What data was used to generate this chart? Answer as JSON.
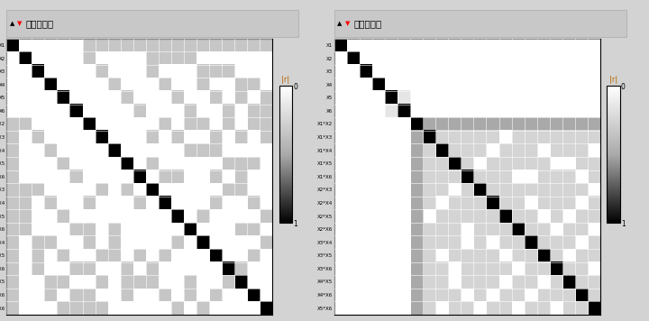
{
  "labels": [
    "X1",
    "X2",
    "X3",
    "X4",
    "X5",
    "X6",
    "X1*X2",
    "X1*X3",
    "X1*X4",
    "X1*X5",
    "X1*X6",
    "X2*X3",
    "X2*X4",
    "X2*X5",
    "X2*X6",
    "X3*X4",
    "X3*X5",
    "X3*X6",
    "X4*X5",
    "X4*X6",
    "X5*X6"
  ],
  "title": "相关性色图",
  "bg_color": "#d3d3d3",
  "panel_bg": "#ebebeb",
  "title_bg": "#c8c8c8",
  "PB_matrix": [
    [
      1,
      0,
      0,
      0,
      0,
      0,
      0.333,
      0.333,
      0.333,
      0.333,
      0.333,
      0.333,
      0.333,
      0.333,
      0.333,
      0.333,
      0.333,
      0.333,
      0.333,
      0.333,
      0.333
    ],
    [
      0,
      1,
      0,
      0,
      0,
      0,
      0.333,
      0,
      0,
      0,
      0,
      0.333,
      0.333,
      0.333,
      0.333,
      0,
      0,
      0,
      0,
      0,
      0
    ],
    [
      0,
      0,
      1,
      0,
      0,
      0,
      0,
      0.333,
      0,
      0,
      0,
      0.333,
      0,
      0,
      0,
      0.333,
      0.333,
      0.333,
      0,
      0,
      0
    ],
    [
      0,
      0,
      0,
      1,
      0,
      0,
      0,
      0,
      0.333,
      0,
      0,
      0,
      0.333,
      0,
      0,
      0.333,
      0,
      0,
      0.333,
      0.333,
      0
    ],
    [
      0,
      0,
      0,
      0,
      1,
      0,
      0,
      0,
      0,
      0.333,
      0,
      0,
      0,
      0.333,
      0,
      0,
      0.333,
      0,
      0.333,
      0,
      0.333
    ],
    [
      0,
      0,
      0,
      0,
      0,
      1,
      0,
      0,
      0,
      0,
      0.333,
      0,
      0,
      0,
      0.333,
      0,
      0,
      0.333,
      0,
      0.333,
      0.333
    ],
    [
      0.333,
      0.333,
      0,
      0,
      0,
      0,
      1,
      0,
      0,
      0,
      0,
      0,
      0.333,
      0,
      0.333,
      0.333,
      0,
      0.333,
      0,
      0.333,
      0.333
    ],
    [
      0.333,
      0,
      0.333,
      0,
      0,
      0,
      0,
      1,
      0,
      0,
      0,
      0.333,
      0,
      0.333,
      0,
      0,
      0.333,
      0,
      0.333,
      0,
      0.333
    ],
    [
      0.333,
      0,
      0,
      0.333,
      0,
      0,
      0,
      0,
      1,
      0,
      0,
      0,
      0,
      0,
      0.333,
      0.333,
      0.333,
      0,
      0,
      0,
      0
    ],
    [
      0.333,
      0,
      0,
      0,
      0.333,
      0,
      0,
      0,
      0,
      1,
      0,
      0.333,
      0,
      0,
      0,
      0,
      0,
      0.333,
      0.333,
      0.333,
      0
    ],
    [
      0.333,
      0,
      0,
      0,
      0,
      0.333,
      0,
      0,
      0,
      0,
      1,
      0,
      0.333,
      0.333,
      0,
      0,
      0.333,
      0,
      0.333,
      0,
      0
    ],
    [
      0.333,
      0.333,
      0.333,
      0,
      0,
      0,
      0,
      0.333,
      0,
      0.333,
      0,
      1,
      0,
      0,
      0,
      0,
      0,
      0.333,
      0.333,
      0,
      0
    ],
    [
      0.333,
      0.333,
      0,
      0.333,
      0,
      0,
      0.333,
      0,
      0,
      0,
      0.333,
      0,
      1,
      0,
      0,
      0,
      0.333,
      0,
      0,
      0.333,
      0
    ],
    [
      0.333,
      0.333,
      0,
      0,
      0.333,
      0,
      0,
      0,
      0,
      0,
      0,
      0,
      0,
      1,
      0,
      0.333,
      0,
      0,
      0,
      0,
      0.333
    ],
    [
      0.333,
      0.333,
      0,
      0,
      0,
      0.333,
      0.333,
      0,
      0.333,
      0,
      0,
      0,
      0,
      0,
      1,
      0,
      0,
      0,
      0.333,
      0.333,
      0
    ],
    [
      0.333,
      0,
      0.333,
      0.333,
      0,
      0,
      0.333,
      0,
      0.333,
      0,
      0,
      0,
      0,
      0.333,
      0,
      1,
      0,
      0,
      0,
      0,
      0.333
    ],
    [
      0.333,
      0,
      0.333,
      0,
      0.333,
      0,
      0,
      0.333,
      0.333,
      0,
      0.333,
      0,
      0.333,
      0,
      0,
      0,
      1,
      0,
      0,
      0.333,
      0
    ],
    [
      0.333,
      0,
      0.333,
      0,
      0,
      0.333,
      0.333,
      0,
      0,
      0.333,
      0,
      0.333,
      0,
      0,
      0,
      0,
      0,
      1,
      0.333,
      0,
      0
    ],
    [
      0.333,
      0,
      0,
      0.333,
      0.333,
      0,
      0,
      0.333,
      0,
      0.333,
      0.333,
      0.333,
      0,
      0,
      0.333,
      0,
      0,
      0.333,
      1,
      0,
      0
    ],
    [
      0.333,
      0,
      0,
      0.333,
      0,
      0.333,
      0.333,
      0,
      0,
      0.333,
      0,
      0,
      0.333,
      0,
      0.333,
      0,
      0.333,
      0,
      0,
      1,
      0
    ],
    [
      0.333,
      0,
      0,
      0,
      0.333,
      0.333,
      0.333,
      0.333,
      0,
      0,
      0,
      0,
      0,
      0.333,
      0,
      0.333,
      0,
      0,
      0,
      0,
      1
    ]
  ],
  "DS_matrix": [
    [
      1,
      0,
      0,
      0,
      0,
      0,
      0,
      0,
      0,
      0,
      0,
      0,
      0,
      0,
      0,
      0,
      0,
      0,
      0,
      0,
      0
    ],
    [
      0,
      1,
      0,
      0,
      0,
      0,
      0,
      0,
      0,
      0,
      0,
      0,
      0,
      0,
      0,
      0,
      0,
      0,
      0,
      0,
      0
    ],
    [
      0,
      0,
      1,
      0,
      0,
      0,
      0,
      0,
      0,
      0,
      0,
      0,
      0,
      0,
      0,
      0,
      0,
      0,
      0,
      0,
      0
    ],
    [
      0,
      0,
      0,
      1,
      0,
      0,
      0,
      0,
      0,
      0,
      0,
      0,
      0,
      0,
      0,
      0,
      0,
      0,
      0,
      0,
      0
    ],
    [
      0,
      0,
      0,
      0,
      1,
      0.15,
      0,
      0,
      0,
      0,
      0,
      0,
      0,
      0,
      0,
      0,
      0,
      0,
      0,
      0,
      0
    ],
    [
      0,
      0,
      0,
      0,
      0.15,
      1,
      0,
      0,
      0,
      0,
      0,
      0,
      0,
      0,
      0,
      0,
      0,
      0,
      0,
      0,
      0
    ],
    [
      0,
      0,
      0,
      0,
      0,
      0,
      1,
      0.5,
      0.5,
      0.5,
      0.5,
      0.5,
      0.5,
      0.5,
      0.5,
      0.5,
      0.5,
      0.5,
      0.5,
      0.5,
      0.5
    ],
    [
      0,
      0,
      0,
      0,
      0,
      0,
      0.5,
      1,
      0.25,
      0.25,
      0.25,
      0.25,
      0.25,
      0,
      0.25,
      0.25,
      0.25,
      0.25,
      0.25,
      0.25,
      0.25
    ],
    [
      0,
      0,
      0,
      0,
      0,
      0,
      0.5,
      0.25,
      1,
      0.25,
      0.25,
      0.25,
      0,
      0.25,
      0.25,
      0.25,
      0,
      0.25,
      0.25,
      0.25,
      0
    ],
    [
      0,
      0,
      0,
      0,
      0,
      0,
      0.5,
      0.25,
      0.25,
      1,
      0.25,
      0,
      0.25,
      0.25,
      0.25,
      0.25,
      0.25,
      0,
      0,
      0.25,
      0.25
    ],
    [
      0,
      0,
      0,
      0,
      0,
      0,
      0.5,
      0.25,
      0.25,
      0.25,
      1,
      0.25,
      0.25,
      0.25,
      0,
      0,
      0.25,
      0.25,
      0.25,
      0,
      0.25
    ],
    [
      0,
      0,
      0,
      0,
      0,
      0,
      0.5,
      0.25,
      0.25,
      0,
      0.25,
      1,
      0.25,
      0.25,
      0.25,
      0.25,
      0.25,
      0.25,
      0.25,
      0.25,
      0
    ],
    [
      0,
      0,
      0,
      0,
      0,
      0,
      0.5,
      0.25,
      0,
      0.25,
      0.25,
      0.25,
      1,
      0.25,
      0.25,
      0,
      0.25,
      0.25,
      0.25,
      0,
      0.25
    ],
    [
      0,
      0,
      0,
      0,
      0,
      0,
      0.5,
      0,
      0.25,
      0.25,
      0.25,
      0.25,
      0.25,
      1,
      0.25,
      0.25,
      0,
      0.25,
      0,
      0.25,
      0.25
    ],
    [
      0,
      0,
      0,
      0,
      0,
      0,
      0.5,
      0.25,
      0.25,
      0.25,
      0,
      0.25,
      0.25,
      0.25,
      1,
      0.25,
      0.25,
      0,
      0.25,
      0.25,
      0
    ],
    [
      0,
      0,
      0,
      0,
      0,
      0,
      0.5,
      0.25,
      0.25,
      0.25,
      0,
      0.25,
      0,
      0.25,
      0.25,
      1,
      0.25,
      0.25,
      0.25,
      0,
      0.25
    ],
    [
      0,
      0,
      0,
      0,
      0,
      0,
      0.5,
      0.25,
      0,
      0.25,
      0.25,
      0.25,
      0.25,
      0,
      0.25,
      0.25,
      1,
      0.25,
      0,
      0.25,
      0.25
    ],
    [
      0,
      0,
      0,
      0,
      0,
      0,
      0.5,
      0.25,
      0.25,
      0,
      0.25,
      0.25,
      0.25,
      0.25,
      0,
      0.25,
      0.25,
      1,
      0.25,
      0.25,
      0
    ],
    [
      0,
      0,
      0,
      0,
      0,
      0,
      0.5,
      0.25,
      0.25,
      0,
      0.25,
      0.25,
      0.25,
      0,
      0.25,
      0.25,
      0,
      0.25,
      1,
      0.25,
      0.25
    ],
    [
      0,
      0,
      0,
      0,
      0,
      0,
      0.5,
      0.25,
      0.25,
      0.25,
      0,
      0.25,
      0,
      0.25,
      0.25,
      0,
      0.25,
      0.25,
      0.25,
      1,
      0.25
    ],
    [
      0,
      0,
      0,
      0,
      0,
      0,
      0.5,
      0.25,
      0,
      0.25,
      0.25,
      0,
      0.25,
      0.25,
      0,
      0.25,
      0.25,
      0,
      0.25,
      0.25,
      1
    ]
  ]
}
